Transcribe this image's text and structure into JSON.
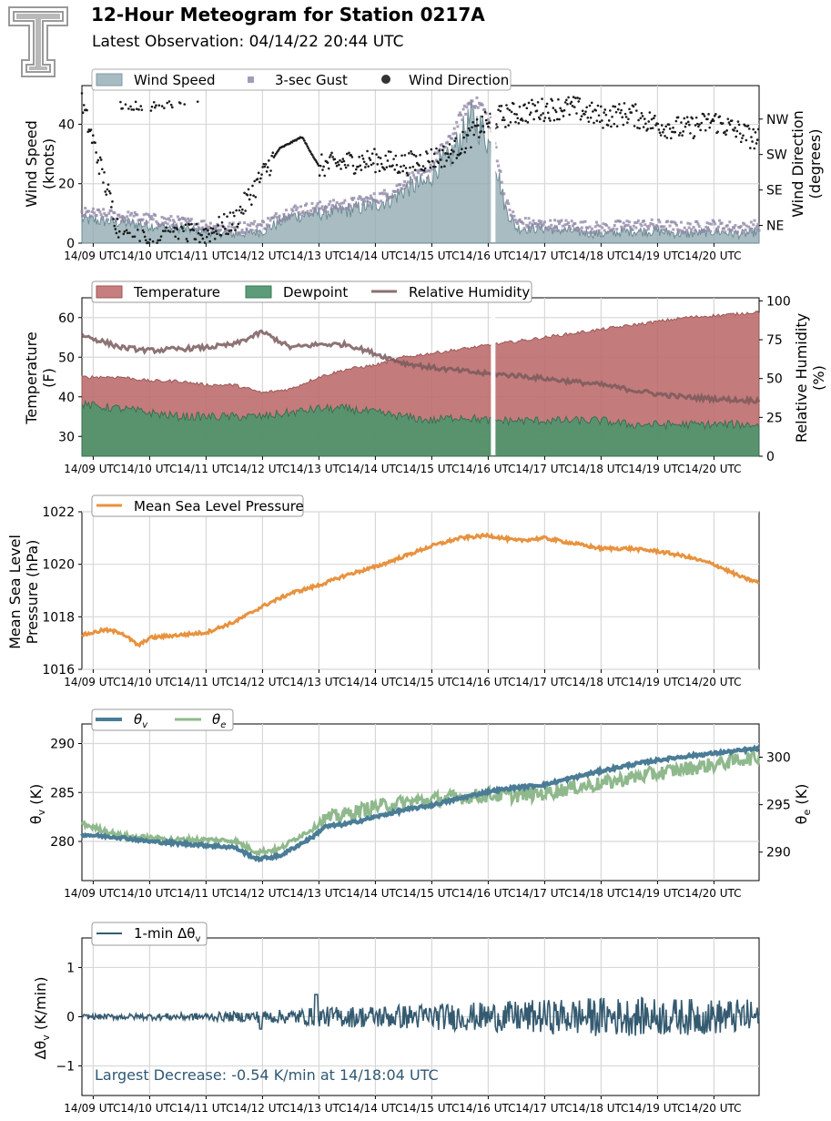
{
  "header": {
    "title": "12-Hour Meteogram for Station 0217A",
    "subtitle": "Latest Observation: 04/14/22 20:44 UTC"
  },
  "time_labels": [
    "14/09 UTC",
    "14/10 UTC",
    "14/11 UTC",
    "14/12 UTC",
    "14/13 UTC",
    "14/14 UTC",
    "14/15 UTC",
    "14/16 UTC",
    "14/17 UTC",
    "14/18 UTC",
    "14/19 UTC",
    "14/20 UTC"
  ],
  "chart_data": [
    {
      "type": "area",
      "panel": "wind",
      "x_range_hours": [
        8.8,
        20.8
      ],
      "ylabel": "Wind Speed\n(knots)",
      "ylabel2": "Wind Direction\n(degrees)",
      "ylim": [
        0,
        53
      ],
      "y_ticks": [
        0,
        20,
        40
      ],
      "ylim2": [
        0,
        400
      ],
      "y2_ticks": [
        {
          "v": 45,
          "label": "NE"
        },
        {
          "v": 135,
          "label": "SE"
        },
        {
          "v": 225,
          "label": "SW"
        },
        {
          "v": 315,
          "label": "NW"
        }
      ],
      "legend": [
        "Wind Speed",
        "3-sec Gust",
        "Wind Direction"
      ],
      "legend_position": "top-left",
      "grid": true,
      "colors": {
        "speed": "#8fa9b1",
        "gust": "#938aa9",
        "dir": "#1a1a1a"
      },
      "x": [
        8.8,
        9.5,
        10.0,
        10.5,
        11.0,
        11.5,
        12.0,
        12.5,
        13.0,
        13.5,
        14.0,
        14.3,
        14.6,
        14.9,
        15.1,
        15.3,
        15.5,
        15.7,
        15.9,
        16.1,
        16.3,
        16.5,
        17.0,
        17.5,
        18.0,
        18.5,
        19.0,
        19.5,
        20.0,
        20.5,
        20.8
      ],
      "speed": [
        8,
        7,
        6,
        5,
        4,
        3,
        4,
        9,
        10,
        11,
        13,
        15,
        19,
        20,
        26,
        28,
        35,
        42,
        38,
        30,
        12,
        5,
        5,
        4,
        3,
        4,
        4,
        3,
        4,
        3,
        4
      ],
      "gust": [
        10,
        9,
        8,
        7,
        6,
        5,
        6,
        11,
        12,
        13,
        15,
        17,
        22,
        23,
        30,
        34,
        42,
        48,
        46,
        36,
        14,
        7,
        6,
        6,
        5,
        6,
        6,
        5,
        6,
        5,
        6
      ],
      "direction_x": [
        8.8,
        9.5,
        10.0,
        10.5,
        11.0,
        11.5,
        11.9,
        12.3,
        12.7,
        13.0,
        13.5,
        14.0,
        14.5,
        15.0,
        15.3,
        15.6,
        15.9,
        16.2,
        16.5,
        17.0,
        17.5,
        18.0,
        18.5,
        19.0,
        19.5,
        20.0,
        20.5,
        20.8
      ],
      "direction": [
        355,
        10,
        5,
        15,
        25,
        55,
        150,
        240,
        270,
        195,
        205,
        210,
        200,
        215,
        225,
        260,
        300,
        320,
        330,
        340,
        345,
        320,
        330,
        300,
        290,
        310,
        280,
        260
      ]
    },
    {
      "type": "area",
      "panel": "temperature",
      "x_range_hours": [
        8.8,
        20.8
      ],
      "ylabel": "Temperature\n(F)",
      "ylabel2": "Relative Humidity\n(%)",
      "ylim": [
        25,
        65
      ],
      "y_ticks": [
        30,
        40,
        50,
        60
      ],
      "ylim2": [
        0,
        102
      ],
      "y2_ticks": [
        0,
        25,
        50,
        75,
        100
      ],
      "legend": [
        "Temperature",
        "Dewpoint",
        "Relative Humidity"
      ],
      "legend_position": "top-left",
      "grid": true,
      "colors": {
        "temp": "#be6d6e",
        "dew": "#4e956d",
        "rh": "#7a5b5c"
      },
      "x": [
        8.8,
        9.5,
        10.0,
        10.5,
        11.0,
        11.5,
        12.0,
        12.5,
        13.0,
        13.5,
        14.0,
        14.5,
        15.0,
        15.5,
        16.0,
        16.5,
        17.0,
        17.5,
        18.0,
        18.5,
        19.0,
        19.5,
        20.0,
        20.5,
        20.8
      ],
      "temp": [
        45,
        45,
        44,
        44,
        43,
        43,
        41,
        42,
        45,
        47,
        48,
        50,
        51,
        52,
        53,
        54,
        55,
        56,
        57,
        58,
        59,
        60,
        60.5,
        61,
        61.5
      ],
      "dewpoint": [
        38,
        37,
        36,
        35,
        35,
        35,
        35,
        36,
        37,
        37,
        36,
        35,
        34,
        35,
        34,
        34,
        34,
        34,
        34,
        33,
        33,
        33,
        33,
        33,
        33
      ],
      "rh": [
        78,
        70,
        68,
        69,
        70,
        72,
        80,
        70,
        72,
        72,
        66,
        60,
        57,
        55,
        53,
        52,
        50,
        48,
        46,
        43,
        40,
        38,
        37,
        36,
        36
      ]
    },
    {
      "type": "line",
      "panel": "pressure",
      "x_range_hours": [
        8.8,
        20.8
      ],
      "ylabel": "Mean Sea Level\nPressure (hPa)",
      "ylim": [
        1016,
        1022
      ],
      "y_ticks": [
        1016,
        1018,
        1020,
        1022
      ],
      "legend": [
        "Mean Sea Level Pressure"
      ],
      "legend_position": "top-left",
      "grid": true,
      "colors": {
        "mslp": "#e8923e"
      },
      "x": [
        8.8,
        9.2,
        9.5,
        9.8,
        10.0,
        10.5,
        11.0,
        11.5,
        12.0,
        12.5,
        13.0,
        13.5,
        14.0,
        14.5,
        15.0,
        15.5,
        16.0,
        16.5,
        17.0,
        17.5,
        18.0,
        18.5,
        19.0,
        19.5,
        20.0,
        20.5,
        20.8
      ],
      "mslp": [
        1017.3,
        1017.5,
        1017.4,
        1016.9,
        1017.2,
        1017.3,
        1017.4,
        1017.8,
        1018.4,
        1018.9,
        1019.2,
        1019.6,
        1019.9,
        1020.3,
        1020.7,
        1021.0,
        1021.1,
        1020.9,
        1021.0,
        1020.8,
        1020.6,
        1020.6,
        1020.5,
        1020.3,
        1020.0,
        1019.5,
        1019.3
      ]
    },
    {
      "type": "line",
      "panel": "theta",
      "x_range_hours": [
        8.8,
        20.8
      ],
      "ylabel": "θv (K)",
      "ylabel2": "θe (K)",
      "ylim": [
        276,
        292
      ],
      "y_ticks": [
        280,
        285,
        290
      ],
      "ylim2": [
        287,
        303.5
      ],
      "y2_ticks": [
        290,
        295,
        300
      ],
      "legend": [
        "θv",
        "θe"
      ],
      "legend_position": "top-left",
      "grid": true,
      "colors": {
        "theta_v": "#4a7c96",
        "theta_e": "#8fb98c"
      },
      "x": [
        8.8,
        9.5,
        10.0,
        10.5,
        11.0,
        11.5,
        11.9,
        12.3,
        12.6,
        12.9,
        13.1,
        13.5,
        14.0,
        14.5,
        15.0,
        15.5,
        16.0,
        16.5,
        17.0,
        17.5,
        18.0,
        18.5,
        19.0,
        19.5,
        20.0,
        20.5,
        20.8
      ],
      "theta_v": [
        280.7,
        280.4,
        280.0,
        279.8,
        279.6,
        279.4,
        278.2,
        278.5,
        279.5,
        280.5,
        281.5,
        281.8,
        282.5,
        283.2,
        283.7,
        284.4,
        285.1,
        285.5,
        285.8,
        286.5,
        287.2,
        287.8,
        288.3,
        288.7,
        289.0,
        289.3,
        289.5
      ],
      "theta_e": [
        293.0,
        291.7,
        291.5,
        291.3,
        291.3,
        291.2,
        290.0,
        290.3,
        291.5,
        292.5,
        293.5,
        294.0,
        294.8,
        295.2,
        295.5,
        295.8,
        296.0,
        296.0,
        296.2,
        296.8,
        297.2,
        297.8,
        298.3,
        298.8,
        299.2,
        299.8,
        300.0
      ]
    },
    {
      "type": "line",
      "panel": "dtheta",
      "x_range_hours": [
        8.8,
        20.8
      ],
      "ylabel": "Δθv (K/min)",
      "ylim": [
        -1.6,
        1.6
      ],
      "y_ticks": [
        -1,
        0,
        1
      ],
      "legend": [
        "1-min Δθv"
      ],
      "legend_position": "top-left",
      "grid": true,
      "colors": {
        "dtheta": "#345a70"
      },
      "amplitude_x": [
        8.8,
        11.0,
        12.5,
        13.0,
        14.5,
        16.0,
        18.0,
        20.8
      ],
      "amplitude": [
        0.05,
        0.08,
        0.15,
        0.2,
        0.25,
        0.3,
        0.4,
        0.35
      ],
      "annotation": "Largest Decrease: -0.54 K/min at 14/18:04 UTC"
    }
  ],
  "y2_axis_labels": {
    "wind": [
      "Wind Direction",
      "(degrees)"
    ],
    "temp": [
      "Relative Humidity",
      "(%)"
    ]
  },
  "legend_labels": {
    "wind_speed": "Wind Speed",
    "gust": "3-sec Gust",
    "wind_dir": "Wind Direction",
    "temperature": "Temperature",
    "dewpoint": "Dewpoint",
    "rh": "Relative Humidity",
    "mslp": "Mean Sea Level Pressure",
    "theta_v": "θv",
    "theta_e": "θe",
    "dtheta": "1-min Δθv"
  }
}
